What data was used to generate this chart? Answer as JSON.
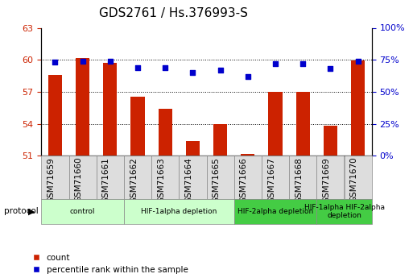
{
  "title": "GDS2761 / Hs.376993-S",
  "samples": [
    "GSM71659",
    "GSM71660",
    "GSM71661",
    "GSM71662",
    "GSM71663",
    "GSM71664",
    "GSM71665",
    "GSM71666",
    "GSM71667",
    "GSM71668",
    "GSM71669",
    "GSM71670"
  ],
  "bar_values": [
    58.6,
    60.2,
    59.7,
    56.5,
    55.4,
    52.4,
    54.0,
    51.2,
    57.0,
    57.0,
    53.8,
    59.9
  ],
  "dot_values": [
    73,
    74,
    74,
    69,
    69,
    65,
    67,
    62,
    72,
    72,
    68,
    74
  ],
  "ylim_left": [
    51,
    63
  ],
  "ylim_right": [
    0,
    100
  ],
  "yticks_left": [
    51,
    54,
    57,
    60,
    63
  ],
  "yticks_right": [
    0,
    25,
    50,
    75,
    100
  ],
  "bar_color": "#cc2200",
  "dot_color": "#0000cc",
  "bar_width": 0.5,
  "grid_lines": [
    54,
    57,
    60
  ],
  "protocol_groups": [
    {
      "label": "control",
      "start": 0,
      "end": 2,
      "color": "#ccffcc"
    },
    {
      "label": "HIF-1alpha depletion",
      "start": 3,
      "end": 6,
      "color": "#ccffcc"
    },
    {
      "label": "HIF-2alpha depletion",
      "start": 7,
      "end": 9,
      "color": "#44cc44"
    },
    {
      "label": "HIF-1alpha HIF-2alpha\ndepletion",
      "start": 10,
      "end": 11,
      "color": "#44cc44"
    }
  ],
  "protocol_label": "protocol",
  "legend_labels": [
    "count",
    "percentile rank within the sample"
  ],
  "background_color": "#ffffff",
  "tick_color_left": "#cc2200",
  "tick_color_right": "#0000cc",
  "title_fontsize": 11,
  "label_fontsize": 7.5,
  "tick_fontsize": 8
}
